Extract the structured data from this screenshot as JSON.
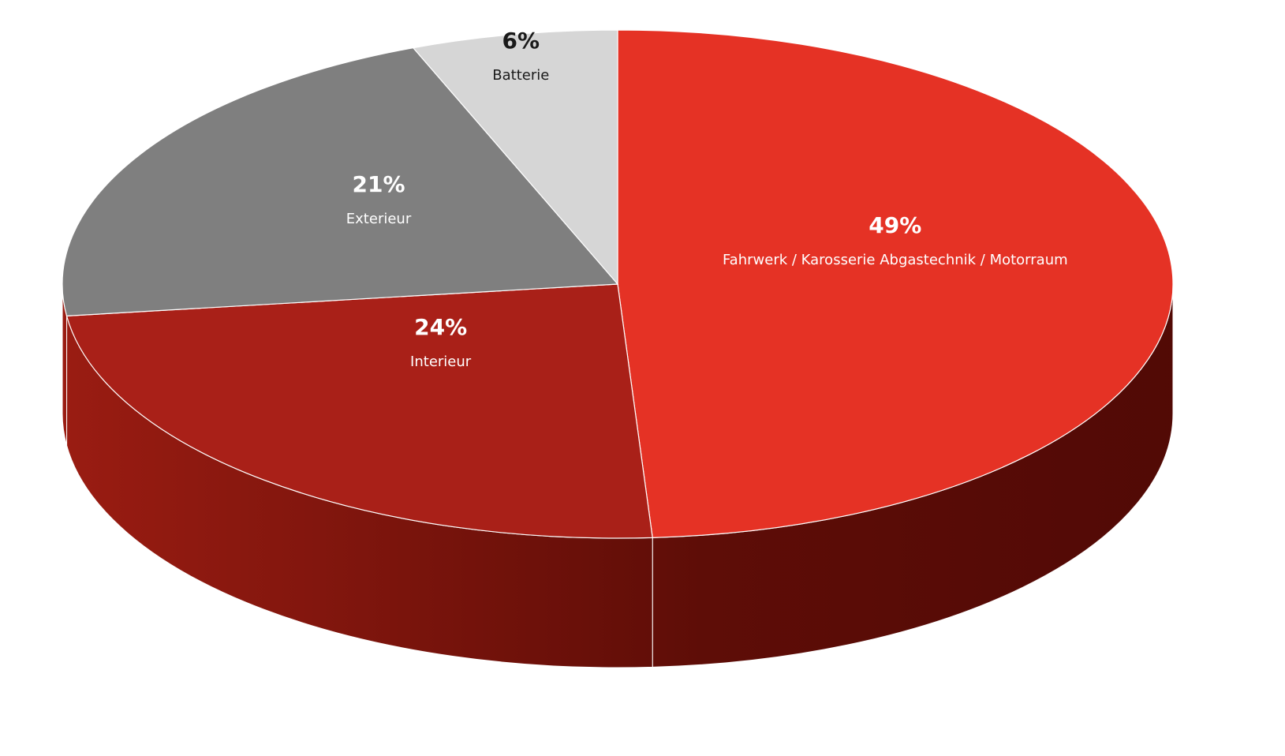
{
  "chart_data": {
    "type": "pie",
    "style": "3d",
    "slices": [
      {
        "label": "Fahrwerk / Karosserie Abgastechnik / Motorraum",
        "value": 49,
        "value_label": "49%",
        "color": "#e53225",
        "side_color": "#a11a12",
        "text_color": "#ffffff"
      },
      {
        "label": "Interieur",
        "value": 24,
        "value_label": "24%",
        "color": "#a92018",
        "side_color": "#8b1911",
        "text_color": "#ffffff"
      },
      {
        "label": "Exterieur",
        "value": 21,
        "value_label": "21%",
        "color": "#7f7f7f",
        "side_color": "#6a6a6a",
        "text_color": "#ffffff"
      },
      {
        "label": "Batterie",
        "value": 6,
        "value_label": "6%",
        "color": "#d6d6d6",
        "side_color": "#bdbdbd",
        "text_color": "#1a1a1a"
      }
    ],
    "start": "12 o'clock",
    "direction": "clockwise"
  }
}
